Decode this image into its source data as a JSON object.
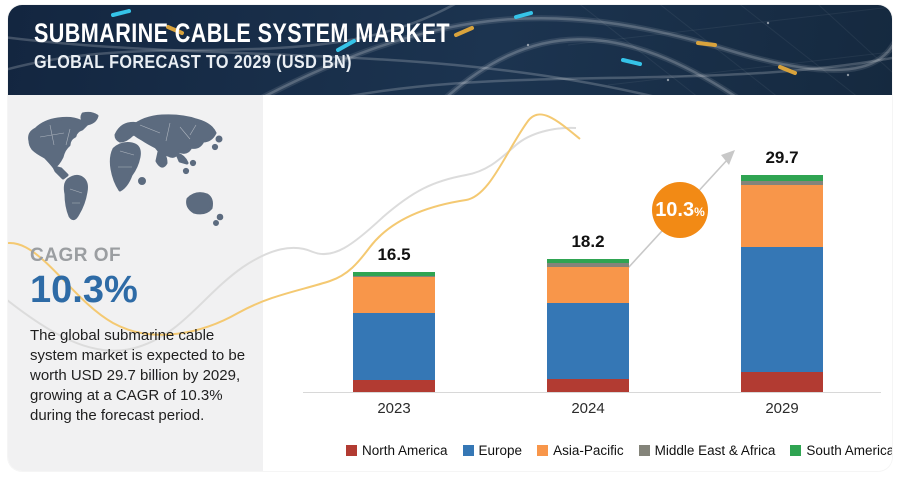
{
  "header": {
    "title": "SUBMARINE CABLE SYSTEM MARKET",
    "subtitle": "GLOBAL FORECAST TO 2029 (USD BN)"
  },
  "sidebar": {
    "map_icon": "world-map",
    "cagr_label": "CAGR OF",
    "cagr_value": "10.3%",
    "description": "The global submarine cable system market is expected to be worth USD 29.7 billion by 2029, growing at a CAGR of 10.3% during the forecast period."
  },
  "growth_badge": {
    "value": "10.3",
    "unit": "%",
    "color": "#f28a15"
  },
  "chart_data": {
    "type": "bar",
    "stacked": true,
    "title": "Submarine Cable System Market — Global Forecast to 2029 (USD BN)",
    "categories": [
      "2023",
      "2024",
      "2029"
    ],
    "totals": [
      16.5,
      18.2,
      29.7
    ],
    "value_labels": [
      "16.5",
      "18.2",
      "29.7"
    ],
    "series": [
      {
        "name": "North America",
        "color": "#b23b32",
        "values": [
          1.7,
          1.7,
          2.7
        ]
      },
      {
        "name": "Europe",
        "color": "#3577b5",
        "values": [
          9.1,
          10.5,
          17.1
        ]
      },
      {
        "name": "Asia-Pacific",
        "color": "#f8964a",
        "values": [
          4.9,
          4.9,
          8.5
        ]
      },
      {
        "name": "Middle East & Africa",
        "color": "#84847a",
        "values": [
          0.2,
          0.6,
          0.6
        ]
      },
      {
        "name": "South America",
        "color": "#2fa452",
        "values": [
          0.6,
          0.5,
          0.8
        ]
      }
    ],
    "cagr_percent": 10.3,
    "legend_position": "bottom",
    "ylabel": "USD BN",
    "grid": false
  },
  "colors": {
    "header_bg": "#16293f",
    "panel_bg": "#f1f1f2",
    "map_fill": "#5c6b7f",
    "cagr_blue": "#2e6ba6",
    "wave_yellow": "#f4c972",
    "wave_grey": "#d9d9d9",
    "arrow_grey": "#c8c8c8"
  }
}
